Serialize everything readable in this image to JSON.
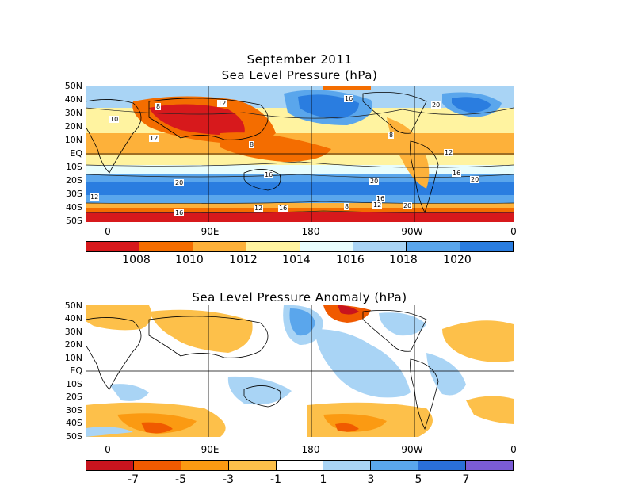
{
  "top": {
    "title_line1": "September 2011",
    "title_line2": "Sea Level Pressure (hPa)",
    "lat_labels": [
      "50N",
      "40N",
      "30N",
      "20N",
      "10N",
      "EQ",
      "10S",
      "20S",
      "30S",
      "40S",
      "50S"
    ],
    "lon_labels": [
      "0",
      "90E",
      "180",
      "90W",
      "0"
    ],
    "colorbar": {
      "colors": [
        "#d7191c",
        "#f46d00",
        "#fdb13a",
        "#fff3a0",
        "#e8fdfd",
        "#a9d4f5",
        "#5aa6ec",
        "#2a7de0"
      ],
      "labels": [
        "1008",
        "1010",
        "1012",
        "1014",
        "1016",
        "1018",
        "1020"
      ]
    },
    "contour_labels": [
      "8",
      "12",
      "16",
      "20",
      "8",
      "12",
      "16",
      "20",
      "12",
      "16",
      "20",
      "16",
      "12",
      "8",
      "8",
      "12",
      "16",
      "20",
      "16",
      "12",
      "20",
      "10"
    ]
  },
  "bottom": {
    "title": "Sea Level Pressure Anomaly (hPa)",
    "lat_labels": [
      "50N",
      "40N",
      "30N",
      "20N",
      "10N",
      "EQ",
      "10S",
      "20S",
      "30S",
      "40S",
      "50S"
    ],
    "lon_labels": [
      "0",
      "90E",
      "180",
      "90W",
      "0"
    ],
    "colorbar": {
      "colors": [
        "#c8141e",
        "#f05a00",
        "#fb9a12",
        "#fdc04a",
        "#ffffff",
        "#a9d4f5",
        "#5aa6ec",
        "#2a6fd8",
        "#7b5cd6"
      ],
      "labels": [
        "-7",
        "-5",
        "-3",
        "-1",
        "1",
        "3",
        "5",
        "7"
      ]
    }
  }
}
